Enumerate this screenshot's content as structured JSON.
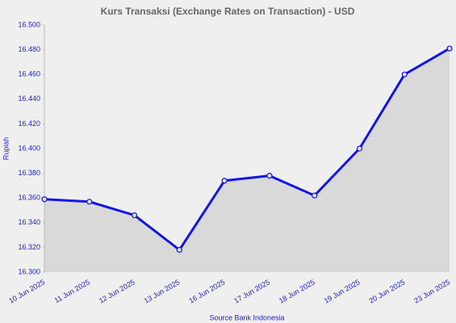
{
  "chart_data": {
    "type": "line",
    "title": "Kurs Transaksi (Exchange Rates on Transaction) - USD",
    "y_label": "Rupiah",
    "source": "Source Bank Indonesia",
    "categories": [
      "10 Jun 2025",
      "11 Jun 2025",
      "12 Jun 2025",
      "13 Jun 2025",
      "16 Jun 2025",
      "17 Jun 2025",
      "18 Jun 2025",
      "19 Jun 2025",
      "20 Jun 2025",
      "23 Jun 2025"
    ],
    "values": [
      16359,
      16357,
      16346,
      16318,
      16374,
      16378,
      16362,
      16400,
      16460,
      16481
    ],
    "color": "#1414e6",
    "area_color": "#d9d9d9",
    "ylim": [
      16300,
      16500
    ],
    "yticks": [
      {
        "value": 16300,
        "label": "16.300"
      },
      {
        "value": 16320,
        "label": "16.320"
      },
      {
        "value": 16340,
        "label": "16.340"
      },
      {
        "value": 16360,
        "label": "16.360"
      },
      {
        "value": 16380,
        "label": "16.380"
      },
      {
        "value": 16400,
        "label": "16.400"
      },
      {
        "value": 16420,
        "label": "16.420"
      },
      {
        "value": 16440,
        "label": "16.440"
      },
      {
        "value": 16460,
        "label": "16.460"
      },
      {
        "value": 16480,
        "label": "16.480"
      },
      {
        "value": 16500,
        "label": "16.500"
      }
    ],
    "grid": false
  }
}
